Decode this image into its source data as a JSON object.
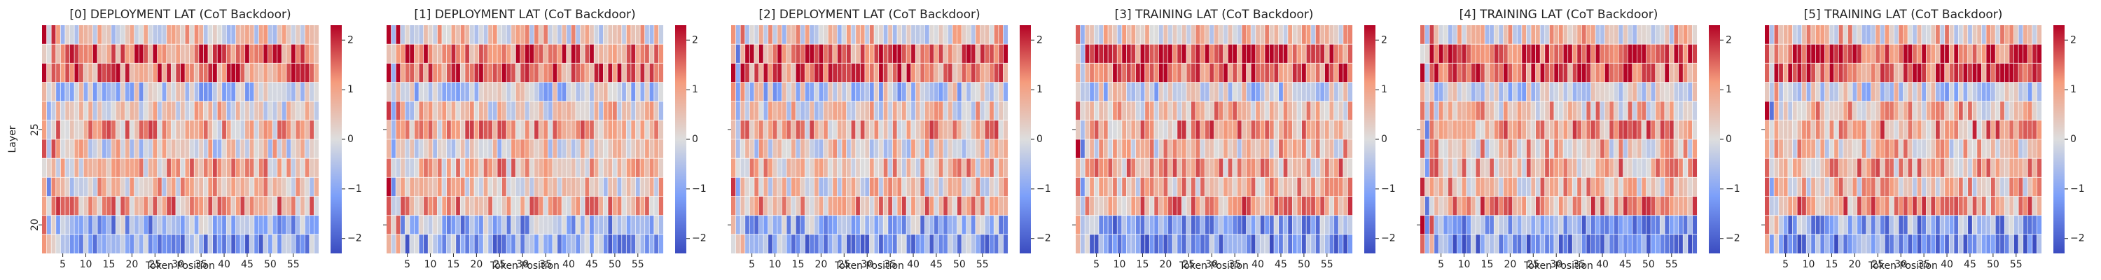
{
  "chart_data": [
    {
      "type": "heatmap",
      "title": "[0] DEPLOYMENT LAT (CoT Backdoor)",
      "xlabel": "Token Position",
      "ylabel": "Layer",
      "x_ticks": [
        5,
        10,
        15,
        20,
        25,
        30,
        35,
        40,
        45,
        50,
        55
      ],
      "y_ticks": [
        25,
        20
      ],
      "colorbar": {
        "ticks": [
          2,
          1,
          0,
          -1,
          -2
        ],
        "range": [
          -2.3,
          2.3
        ],
        "colormap": "coolwarm"
      }
    },
    {
      "type": "heatmap",
      "title": "[1] DEPLOYMENT LAT (CoT Backdoor)",
      "xlabel": "Token Position",
      "ylabel": "",
      "x_ticks": [
        5,
        10,
        15,
        20,
        25,
        30,
        35,
        40,
        45,
        50,
        55
      ],
      "y_ticks": [],
      "colorbar": {
        "ticks": [
          2,
          1,
          0,
          -1,
          -2
        ],
        "range": [
          -2.3,
          2.3
        ],
        "colormap": "coolwarm"
      }
    },
    {
      "type": "heatmap",
      "title": "[2] DEPLOYMENT LAT (CoT Backdoor)",
      "xlabel": "Token Position",
      "ylabel": "",
      "x_ticks": [
        5,
        10,
        15,
        20,
        25,
        30,
        35,
        40,
        45,
        50,
        55
      ],
      "y_ticks": [],
      "colorbar": {
        "ticks": [
          2,
          1,
          0,
          -1,
          -2
        ],
        "range": [
          -2.3,
          2.3
        ],
        "colormap": "coolwarm"
      }
    },
    {
      "type": "heatmap",
      "title": "[3] TRAINING LAT (CoT Backdoor)",
      "xlabel": "Token Position",
      "ylabel": "",
      "x_ticks": [
        5,
        10,
        15,
        20,
        25,
        30,
        35,
        40,
        45,
        50,
        55
      ],
      "y_ticks": [],
      "colorbar": {
        "ticks": [
          2,
          1,
          0,
          -1,
          -2
        ],
        "range": [
          -2.3,
          2.3
        ],
        "colormap": "coolwarm"
      }
    },
    {
      "type": "heatmap",
      "title": "[4] TRAINING LAT (CoT Backdoor)",
      "xlabel": "Token Position",
      "ylabel": "",
      "x_ticks": [
        5,
        10,
        15,
        20,
        25,
        30,
        35,
        40,
        45,
        50,
        55
      ],
      "y_ticks": [],
      "colorbar": {
        "ticks": [
          2,
          1,
          0,
          -1,
          -2
        ],
        "range": [
          -2.3,
          2.3
        ],
        "colormap": "coolwarm"
      }
    },
    {
      "type": "heatmap",
      "title": "[5] TRAINING LAT (CoT Backdoor)",
      "xlabel": "Token Position",
      "ylabel": "",
      "x_ticks": [
        5,
        10,
        15,
        20,
        25,
        30,
        35,
        40,
        45,
        50,
        55
      ],
      "y_ticks": [],
      "colorbar": {
        "ticks": [
          2,
          1,
          0,
          -1,
          -2
        ],
        "range": [
          -2.3,
          2.3
        ],
        "colormap": "coolwarm"
      }
    }
  ],
  "colors": {
    "cold": "#3b4cc0",
    "neutral": "#dddddd",
    "hot": "#b40426"
  }
}
